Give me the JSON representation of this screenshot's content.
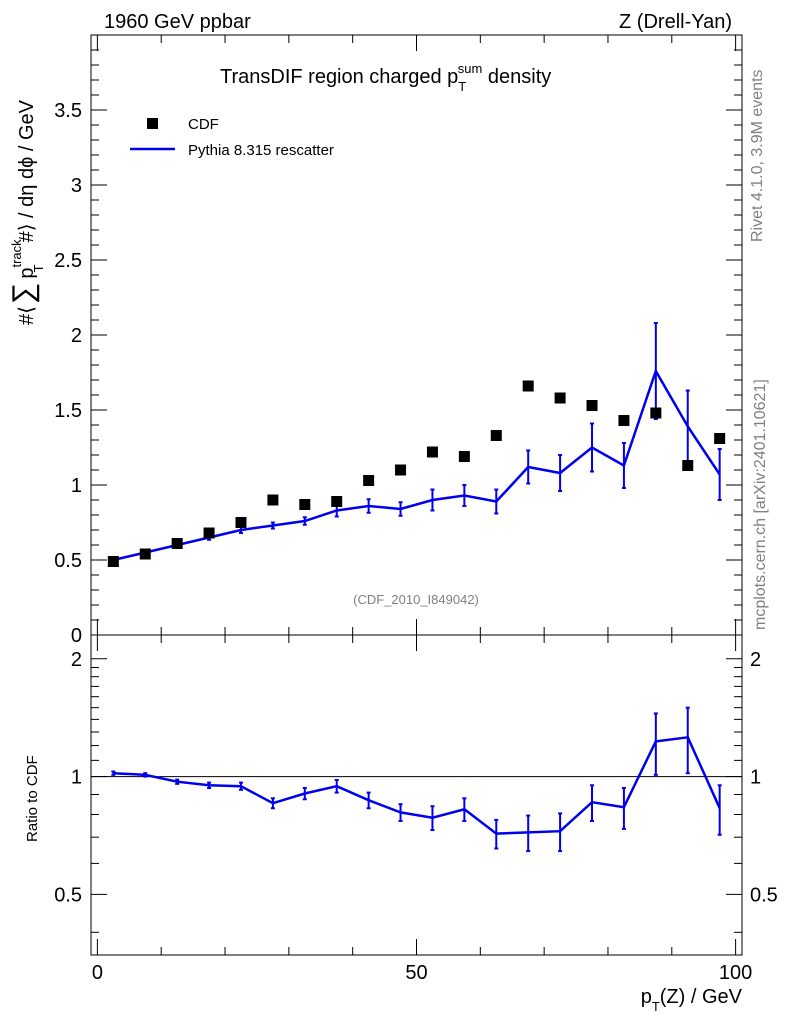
{
  "header": {
    "energy": "1960 GeV ppbar",
    "process": "Z (Drell-Yan)"
  },
  "side": {
    "rivet": "Rivet 4.1.0,  3.9M events",
    "mcplots": "mcplots.cern.ch [arXiv:2401.10621]"
  },
  "chart_data": [
    {
      "type": "scatter",
      "panel": "main",
      "title": "TransDIF region charged p_T^sum density",
      "title_parts": {
        "main": "TransDIF region charged p",
        "sub": "T",
        "sup": "sum",
        "tail": " density"
      },
      "ylabel": "#⟨ ∑ p_T^track #⟩ / dη dφ / GeV",
      "ylabel_parts": {
        "a": "#⟨",
        "sigma": "∑",
        "p": "p",
        "sup": "track",
        "sub": "T",
        "b": "#⟩ / dη dϕ / GeV"
      },
      "ylim": [
        0,
        4
      ],
      "y_ticks": [
        0,
        0.5,
        1,
        1.5,
        2,
        2.5,
        3,
        3.5
      ],
      "y_tick_labels": [
        "0",
        "0.5",
        "1",
        "1.5",
        "2",
        "2.5",
        "3",
        "3.5"
      ],
      "xlim": [
        0,
        100
      ],
      "analysis": "(CDF_2010_I849042)",
      "legend_position": "top-left",
      "series": [
        {
          "name": "CDF",
          "style": "markers",
          "color": "#000000",
          "x": [
            2.5,
            7.5,
            12.5,
            17.5,
            22.5,
            27.5,
            32.5,
            37.5,
            42.5,
            47.5,
            52.5,
            57.5,
            62.5,
            67.5,
            72.5,
            77.5,
            82.5,
            87.5,
            92.5,
            97.5
          ],
          "values": [
            0.49,
            0.54,
            0.61,
            0.68,
            0.75,
            0.9,
            0.87,
            0.89,
            1.03,
            1.1,
            1.22,
            1.19,
            1.33,
            1.66,
            1.58,
            1.53,
            1.43,
            1.48,
            1.13,
            1.31
          ]
        },
        {
          "name": "Pythia 8.315 rescatter",
          "style": "line",
          "color": "#0000ee",
          "x": [
            2.5,
            7.5,
            12.5,
            17.5,
            22.5,
            27.5,
            32.5,
            37.5,
            42.5,
            47.5,
            52.5,
            57.5,
            62.5,
            67.5,
            72.5,
            77.5,
            82.5,
            87.5,
            92.5,
            97.5
          ],
          "values": [
            0.5,
            0.55,
            0.6,
            0.65,
            0.7,
            0.73,
            0.76,
            0.83,
            0.86,
            0.84,
            0.9,
            0.93,
            0.89,
            1.12,
            1.08,
            1.25,
            1.13,
            1.76,
            1.39,
            1.07
          ],
          "errors": [
            0.01,
            0.01,
            0.01,
            0.015,
            0.02,
            0.02,
            0.025,
            0.04,
            0.045,
            0.045,
            0.07,
            0.07,
            0.08,
            0.11,
            0.12,
            0.16,
            0.15,
            0.32,
            0.24,
            0.17
          ]
        }
      ]
    },
    {
      "type": "line",
      "panel": "ratio",
      "ylabel": "Ratio to CDF",
      "ylim": [
        0.35,
        2.3
      ],
      "y_ticks": [
        0.5,
        1,
        2
      ],
      "y_tick_labels": [
        "0.5",
        "1",
        "2"
      ],
      "xlabel": "p_T(Z) / GeV",
      "xlabel_parts": {
        "p": "p",
        "sub": "T",
        "rest": "(Z) / GeV"
      },
      "xlim": [
        -1,
        101
      ],
      "x_ticks": [
        0,
        50,
        100
      ],
      "x_tick_labels": [
        "0",
        "50",
        "100"
      ],
      "reference": 1,
      "series": [
        {
          "name": "Pythia 8.315 rescatter / CDF",
          "color": "#0000ee",
          "x": [
            2.5,
            7.5,
            12.5,
            17.5,
            22.5,
            27.5,
            32.5,
            37.5,
            42.5,
            47.5,
            52.5,
            57.5,
            62.5,
            67.5,
            72.5,
            77.5,
            82.5,
            87.5,
            92.5,
            97.5
          ],
          "values": [
            1.02,
            1.01,
            0.97,
            0.95,
            0.945,
            0.855,
            0.905,
            0.945,
            0.87,
            0.81,
            0.785,
            0.825,
            0.715,
            0.72,
            0.725,
            0.86,
            0.835,
            1.23,
            1.26,
            0.83
          ],
          "errors": [
            0.01,
            0.01,
            0.012,
            0.015,
            0.02,
            0.025,
            0.03,
            0.035,
            0.04,
            0.04,
            0.055,
            0.055,
            0.06,
            0.075,
            0.08,
            0.09,
            0.1,
            0.22,
            0.24,
            0.12
          ]
        }
      ]
    }
  ]
}
